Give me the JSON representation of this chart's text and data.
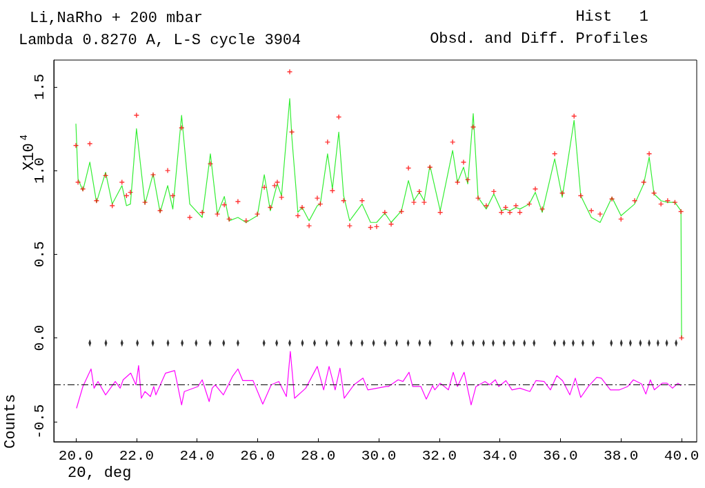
{
  "chart_data": {
    "type": "scatter",
    "title": "Li,NaRho + 200 mbar",
    "subtitle": "Lambda 0.8270 A, L-S cycle 3904",
    "xlabel": "2Θ, deg",
    "ylabel": "Counts",
    "annotations": [
      "X10$^{4}$",
      "Hist   1",
      "Obsd. and Diff. Profiles"
    ],
    "x": [
      20.0,
      20.07,
      20.23,
      20.46,
      20.68,
      20.98,
      21.2,
      21.52,
      21.67,
      21.8,
      22.0,
      22.28,
      22.55,
      22.78,
      23.03,
      23.2,
      23.49,
      23.76,
      24.17,
      24.44,
      24.67,
      24.9,
      25.06,
      25.35,
      25.62,
      25.99,
      26.22,
      26.42,
      26.56,
      26.65,
      26.79,
      27.06,
      27.13,
      27.33,
      27.47,
      27.7,
      27.97,
      28.07,
      28.31,
      28.47,
      28.68,
      28.84,
      29.04,
      29.45,
      29.73,
      29.93,
      30.2,
      30.41,
      30.75,
      30.98,
      31.16,
      31.34,
      31.5,
      31.69,
      32.03,
      32.44,
      32.6,
      32.8,
      32.94,
      33.12,
      33.28,
      33.55,
      33.8,
      34.05,
      34.19,
      34.33,
      34.53,
      34.66,
      34.97,
      35.17,
      35.4,
      35.81,
      36.06,
      36.45,
      36.67,
      37.02,
      37.31,
      37.7,
      38.0,
      38.45,
      38.75,
      38.93,
      39.09,
      39.32,
      39.54,
      39.78,
      39.98,
      40.0
    ],
    "series": [
      {
        "marker": "cross",
        "color": "#ff0000",
        "values": [
          1.15,
          0.93,
          0.89,
          1.16,
          0.82,
          0.97,
          0.79,
          0.93,
          0.85,
          0.87,
          1.33,
          0.81,
          0.975,
          0.76,
          1.0,
          0.85,
          1.255,
          0.72,
          0.75,
          1.04,
          0.74,
          0.795,
          0.71,
          0.815,
          0.7,
          0.74,
          0.9,
          0.78,
          0.91,
          0.93,
          0.84,
          1.59,
          1.23,
          0.73,
          0.78,
          0.67,
          0.835,
          0.8,
          1.17,
          0.88,
          1.32,
          0.82,
          0.67,
          0.82,
          0.66,
          0.665,
          0.75,
          0.68,
          0.755,
          1.015,
          0.81,
          0.875,
          0.81,
          1.02,
          0.75,
          1.17,
          0.93,
          1.05,
          0.945,
          1.26,
          0.835,
          0.79,
          0.875,
          0.75,
          0.78,
          0.75,
          0.79,
          0.75,
          0.8,
          0.89,
          0.77,
          1.1,
          0.865,
          1.325,
          0.85,
          0.76,
          0.74,
          0.83,
          0.71,
          0.82,
          0.93,
          1.1,
          0.865,
          0.8,
          0.82,
          0.81,
          0.755,
          0.0
        ]
      },
      {
        "type": "line",
        "color": "#33ee33",
        "values": [
          1.28,
          0.95,
          0.88,
          1.05,
          0.81,
          0.99,
          0.8,
          0.91,
          0.79,
          0.8,
          1.25,
          0.8,
          0.98,
          0.75,
          0.91,
          0.77,
          1.33,
          0.8,
          0.72,
          1.1,
          0.74,
          0.845,
          0.7,
          0.72,
          0.69,
          0.73,
          0.975,
          0.76,
          0.86,
          0.92,
          0.85,
          1.43,
          1.2,
          0.75,
          0.78,
          0.7,
          0.79,
          0.8,
          1.1,
          0.89,
          1.23,
          0.85,
          0.7,
          0.8,
          0.69,
          0.69,
          0.745,
          0.69,
          0.76,
          0.94,
          0.82,
          0.87,
          0.82,
          1.03,
          0.76,
          1.12,
          0.93,
          1.02,
          0.92,
          1.34,
          0.84,
          0.77,
          0.86,
          0.76,
          0.77,
          0.76,
          0.78,
          0.77,
          0.8,
          0.87,
          0.75,
          1.07,
          0.84,
          1.3,
          0.85,
          0.72,
          0.69,
          0.84,
          0.73,
          0.8,
          0.92,
          1.08,
          0.86,
          0.82,
          0.81,
          0.81,
          0.76,
          0.0
        ]
      },
      {
        "type": "line",
        "color": "#ff00ff",
        "x": [
          20.02,
          20.23,
          20.5,
          20.6,
          20.73,
          20.98,
          21.3,
          21.46,
          21.56,
          21.81,
          21.98,
          22.07,
          22.16,
          22.28,
          22.46,
          22.57,
          22.64,
          22.96,
          23.26,
          23.49,
          23.58,
          24.03,
          24.17,
          24.4,
          24.5,
          24.6,
          24.87,
          25.17,
          25.35,
          25.51,
          25.85,
          26.17,
          26.45,
          26.7,
          26.95,
          27.08,
          27.22,
          27.59,
          27.97,
          28.18,
          28.36,
          28.56,
          28.72,
          28.86,
          29.18,
          29.48,
          29.64,
          30.25,
          30.32,
          30.64,
          30.8,
          31.0,
          31.12,
          31.39,
          31.57,
          31.78,
          31.85,
          32.03,
          32.3,
          32.46,
          32.6,
          32.82,
          33.05,
          33.21,
          33.51,
          33.66,
          33.85,
          33.96,
          34.2,
          34.4,
          34.66,
          34.99,
          35.19,
          35.46,
          35.67,
          35.88,
          36.07,
          36.31,
          36.49,
          36.67,
          36.92,
          37.2,
          37.35,
          37.65,
          37.95,
          38.22,
          38.41,
          38.68,
          38.82,
          38.97,
          39.1,
          39.36,
          39.52,
          39.7,
          39.88,
          39.98
        ],
        "values": [
          -0.42,
          -0.29,
          -0.185,
          -0.3,
          -0.26,
          -0.34,
          -0.26,
          -0.3,
          -0.25,
          -0.21,
          -0.28,
          -0.165,
          -0.36,
          -0.32,
          -0.35,
          -0.29,
          -0.34,
          -0.21,
          -0.195,
          -0.4,
          -0.32,
          -0.29,
          -0.25,
          -0.38,
          -0.3,
          -0.28,
          -0.34,
          -0.23,
          -0.185,
          -0.255,
          -0.255,
          -0.395,
          -0.28,
          -0.26,
          -0.35,
          -0.08,
          -0.36,
          -0.3,
          -0.17,
          -0.31,
          -0.17,
          -0.31,
          -0.18,
          -0.36,
          -0.28,
          -0.24,
          -0.31,
          -0.29,
          -0.29,
          -0.25,
          -0.26,
          -0.205,
          -0.29,
          -0.29,
          -0.365,
          -0.285,
          -0.31,
          -0.27,
          -0.31,
          -0.205,
          -0.29,
          -0.205,
          -0.4,
          -0.29,
          -0.26,
          -0.28,
          -0.25,
          -0.29,
          -0.255,
          -0.31,
          -0.3,
          -0.32,
          -0.255,
          -0.26,
          -0.31,
          -0.225,
          -0.255,
          -0.34,
          -0.24,
          -0.355,
          -0.29,
          -0.235,
          -0.24,
          -0.31,
          -0.31,
          -0.29,
          -0.25,
          -0.275,
          -0.335,
          -0.25,
          -0.31,
          -0.27,
          -0.27,
          -0.3,
          -0.27,
          -0.285
        ]
      },
      {
        "type": "scatter",
        "marker": "diamond",
        "color": "#000000",
        "x": [
          20.46,
          20.99,
          21.52,
          22.03,
          22.54,
          23.04,
          23.51,
          23.97,
          24.43,
          24.88,
          25.35,
          26.21,
          26.63,
          27.06,
          27.48,
          27.88,
          28.28,
          28.67,
          29.09,
          29.45,
          29.83,
          30.21,
          30.59,
          30.97,
          31.35,
          31.69,
          32.41,
          32.77,
          33.12,
          33.46,
          33.78,
          34.14,
          34.46,
          34.81,
          35.13,
          35.81,
          36.12,
          36.42,
          36.74,
          37.08,
          37.68,
          38.01,
          38.31,
          38.64,
          38.93,
          39.22,
          39.51,
          39.82
        ],
        "values": [
          -0.03,
          -0.03,
          -0.03,
          -0.03,
          -0.03,
          -0.03,
          -0.03,
          -0.03,
          -0.03,
          -0.03,
          -0.03,
          -0.03,
          -0.03,
          -0.03,
          -0.03,
          -0.03,
          -0.03,
          -0.03,
          -0.03,
          -0.03,
          -0.03,
          -0.03,
          -0.03,
          -0.03,
          -0.03,
          -0.03,
          -0.03,
          -0.03,
          -0.03,
          -0.03,
          -0.03,
          -0.03,
          -0.03,
          -0.03,
          -0.03,
          -0.03,
          -0.03,
          -0.03,
          -0.03,
          -0.03,
          -0.03,
          -0.03,
          -0.03,
          -0.03,
          -0.03,
          -0.03,
          -0.03,
          -0.03
        ]
      }
    ],
    "ref_lines": [
      {
        "axis": "y",
        "value": -0.28,
        "color": "#000000",
        "line_style": "dashed"
      }
    ],
    "xlim": [
      19.27,
      40.5
    ],
    "ylim": [
      -0.62,
      1.66
    ],
    "xticks": [
      {
        "value": 20,
        "label": "20.0"
      },
      {
        "value": 22,
        "label": "22.0"
      },
      {
        "value": 24,
        "label": "24.0"
      },
      {
        "value": 26,
        "label": "26.0"
      },
      {
        "value": 28,
        "label": "28.0"
      },
      {
        "value": 30,
        "label": "30.0"
      },
      {
        "value": 32,
        "label": "32.0"
      },
      {
        "value": 34,
        "label": "34.0"
      },
      {
        "value": 36,
        "label": "36.0"
      },
      {
        "value": 38,
        "label": "38.0"
      },
      {
        "value": 40,
        "label": "40.0"
      }
    ],
    "yticks": [
      {
        "value": -0.5,
        "label": "-0.5"
      },
      {
        "value": 0,
        "label": "0.0"
      },
      {
        "value": 0.5,
        "label": "0.5"
      },
      {
        "value": 1,
        "label": "1.0"
      },
      {
        "value": 1.5,
        "label": "1.5"
      }
    ],
    "grid": false
  }
}
